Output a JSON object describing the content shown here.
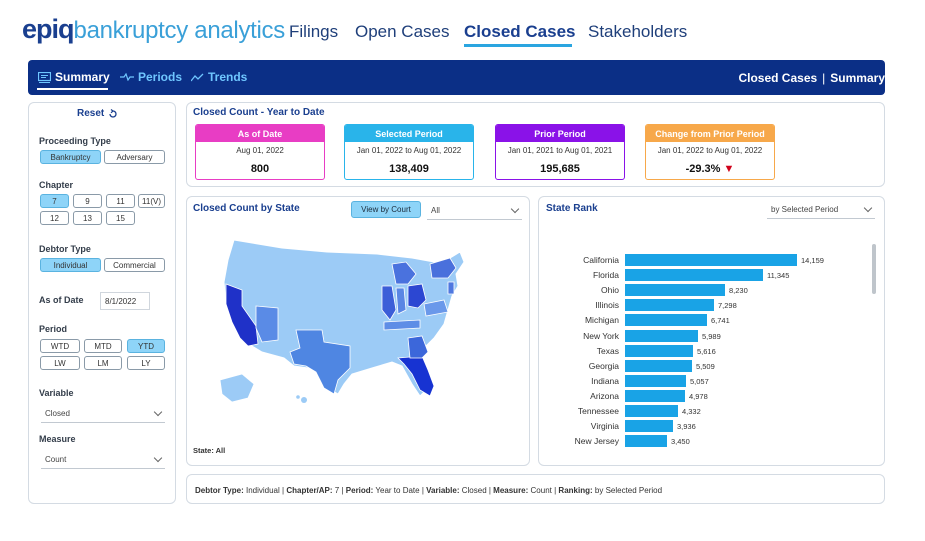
{
  "brand": {
    "logo_prefix": "epiq",
    "logo_name": "bankruptcy analytics"
  },
  "nav": {
    "tabs": [
      "Filings",
      "Open Cases",
      "Closed Cases",
      "Stakeholders"
    ],
    "active": "Closed Cases"
  },
  "subnav": {
    "items": [
      "Summary",
      "Periods",
      "Trends"
    ],
    "active": "Summary",
    "breadcrumb": [
      "Closed Cases",
      "Summary"
    ],
    "breadcrumb_sep": "|"
  },
  "filters": {
    "reset_label": "Reset",
    "proceeding_type": {
      "label": "Proceeding Type",
      "options": [
        "Bankruptcy",
        "Adversary"
      ],
      "selected": "Bankruptcy"
    },
    "chapter": {
      "label": "Chapter",
      "options": [
        "7",
        "9",
        "11",
        "11(V)",
        "12",
        "13",
        "15"
      ],
      "selected": "7"
    },
    "debtor_type": {
      "label": "Debtor Type",
      "options": [
        "Individual",
        "Commercial"
      ],
      "selected": "Individual"
    },
    "as_of_date": {
      "label": "As of Date",
      "value": "8/1/2022"
    },
    "period": {
      "label": "Period",
      "options": [
        "WTD",
        "MTD",
        "YTD",
        "LW",
        "LM",
        "LY"
      ],
      "selected": "YTD"
    },
    "variable": {
      "label": "Variable",
      "value": "Closed"
    },
    "measure": {
      "label": "Measure",
      "value": "Count"
    }
  },
  "kpis": {
    "title": "Closed Count - Year to Date",
    "cards": [
      {
        "header": "As of Date",
        "date": "Aug 01, 2022",
        "value": "800",
        "color": "#e83dc4"
      },
      {
        "header": "Selected Period",
        "date": "Jan 01, 2022 to Aug 01, 2022",
        "value": "138,409",
        "color": "#29b4ea"
      },
      {
        "header": "Prior Period",
        "date": "Jan 01, 2021 to Aug 01, 2021",
        "value": "195,685",
        "color": "#8a12e8"
      },
      {
        "header": "Change from Prior Period",
        "date": "Jan 01, 2022 to Aug 01, 2022",
        "value": "-29.3%",
        "color": "#f7a84a",
        "indicator": "▼",
        "indicator_color": "#d0021b"
      }
    ]
  },
  "map": {
    "title": "Closed Count by State",
    "view_button": "View by Court",
    "dropdown": "All",
    "state_label": "State: All"
  },
  "rank": {
    "title": "State Rank",
    "dropdown": "by Selected Period",
    "bar_color": "#19a3e6"
  },
  "chart_data": {
    "type": "bar",
    "orientation": "horizontal",
    "title": "State Rank",
    "categories": [
      "California",
      "Florida",
      "Ohio",
      "Illinois",
      "Michigan",
      "New York",
      "Texas",
      "Georgia",
      "Indiana",
      "Arizona",
      "Tennessee",
      "Virginia",
      "New Jersey"
    ],
    "values": [
      14159,
      11345,
      8230,
      7298,
      6741,
      5989,
      5616,
      5509,
      5057,
      4978,
      4332,
      3936,
      3450
    ],
    "labels": [
      "14,159",
      "11,345",
      "8,230",
      "7,298",
      "6,741",
      "5,989",
      "5,616",
      "5,509",
      "5,057",
      "4,978",
      "4,332",
      "3,936",
      "3,450"
    ]
  },
  "footer": {
    "items": [
      {
        "key": "Debtor Type:",
        "value": "Individual"
      },
      {
        "key": "Chapter/AP:",
        "value": "7"
      },
      {
        "key": "Period:",
        "value": "Year to Date"
      },
      {
        "key": "Variable:",
        "value": "Closed"
      },
      {
        "key": "Measure:",
        "value": "Count"
      },
      {
        "key": "Ranking:",
        "value": "by Selected Period"
      }
    ]
  }
}
